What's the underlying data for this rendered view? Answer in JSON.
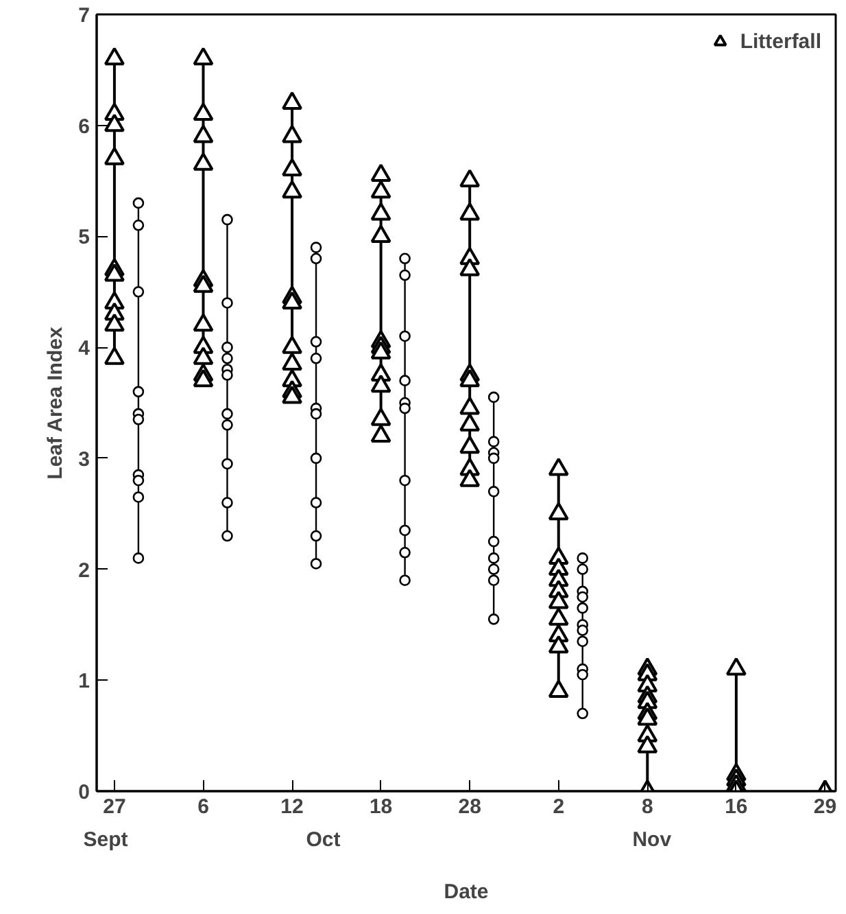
{
  "chart_data": {
    "type": "scatter",
    "xlabel": "Date",
    "ylabel": "Leaf Area Index",
    "categories": [
      "27",
      "6",
      "12",
      "18",
      "28",
      "2",
      "8",
      "16",
      "29"
    ],
    "ylim": [
      0,
      7
    ],
    "yticks": [
      0,
      1,
      2,
      3,
      4,
      5,
      6,
      7
    ],
    "grid": false,
    "legend": "top right",
    "annotations": [
      "Sept",
      "Oct",
      "Nov"
    ],
    "series": [
      {
        "name": "Litterfall",
        "color": "#000000",
        "marker": "triangle",
        "x": [
          "27",
          "27",
          "27",
          "27",
          "27",
          "27",
          "27",
          "27",
          "27",
          "27",
          "6",
          "6",
          "6",
          "6",
          "6",
          "6",
          "6",
          "6",
          "6",
          "6",
          "6",
          "12",
          "12",
          "12",
          "12",
          "12",
          "12",
          "12",
          "12",
          "12",
          "12",
          "12",
          "18",
          "18",
          "18",
          "18",
          "18",
          "18",
          "18",
          "18",
          "18",
          "18",
          "18",
          "28",
          "28",
          "28",
          "28",
          "28",
          "28",
          "28",
          "28",
          "28",
          "28",
          "28",
          "2",
          "2",
          "2",
          "2",
          "2",
          "2",
          "2",
          "2",
          "2",
          "2",
          "2",
          "8",
          "8",
          "8",
          "8",
          "8",
          "8",
          "8",
          "8",
          "8",
          "8",
          "16",
          "16",
          "16",
          "16",
          "16",
          "29"
        ],
        "values": [
          6.6,
          6.1,
          6.0,
          5.7,
          4.7,
          4.65,
          4.4,
          4.3,
          4.2,
          3.9,
          6.6,
          6.1,
          5.9,
          5.65,
          4.6,
          4.55,
          4.2,
          4.0,
          3.9,
          3.75,
          3.7,
          6.2,
          5.9,
          5.6,
          5.4,
          4.45,
          4.4,
          4.0,
          3.85,
          3.7,
          3.6,
          3.55,
          5.55,
          5.4,
          5.2,
          5.0,
          4.05,
          4.0,
          3.95,
          3.75,
          3.65,
          3.35,
          3.2,
          5.5,
          5.2,
          4.8,
          4.7,
          3.75,
          3.7,
          3.45,
          3.3,
          3.1,
          2.9,
          2.8,
          2.9,
          2.5,
          2.1,
          2.0,
          1.9,
          1.8,
          1.7,
          1.55,
          1.4,
          1.3,
          0.9,
          1.1,
          1.05,
          0.95,
          0.85,
          0.8,
          0.7,
          0.65,
          0.5,
          0.4,
          0.0,
          1.1,
          0.15,
          0.1,
          0.05,
          0.0,
          0.0
        ],
        "errors": [
          [
            3.9,
            6.6
          ],
          null,
          null,
          null,
          null,
          null,
          null,
          null,
          null,
          null,
          [
            3.7,
            6.6
          ],
          null,
          null,
          null,
          null,
          null,
          null,
          null,
          null,
          null,
          null,
          [
            3.55,
            6.2
          ],
          null,
          null,
          null,
          null,
          null,
          null,
          null,
          null,
          null,
          null,
          [
            3.2,
            5.55
          ],
          null,
          null,
          null,
          null,
          null,
          null,
          null,
          null,
          null,
          null,
          [
            2.8,
            5.5
          ],
          null,
          null,
          null,
          null,
          null,
          null,
          null,
          null,
          null,
          null,
          [
            0.9,
            2.9
          ],
          null,
          null,
          null,
          null,
          null,
          null,
          null,
          null,
          null,
          null,
          [
            0.0,
            1.1
          ],
          null,
          null,
          null,
          null,
          null,
          null,
          null,
          null,
          null,
          [
            0.0,
            1.1
          ],
          null,
          null,
          null,
          null,
          null
        ]
      },
      {
        "color": "#000000",
        "marker": "circle",
        "x": [
          "27",
          "27",
          "27",
          "27",
          "27",
          "27",
          "27",
          "27",
          "27",
          "27",
          "6",
          "6",
          "6",
          "6",
          "6",
          "6",
          "6",
          "6",
          "6",
          "6",
          "6",
          "12",
          "12",
          "12",
          "12",
          "12",
          "12",
          "12",
          "12",
          "12",
          "12",
          "18",
          "18",
          "18",
          "18",
          "18",
          "18",
          "18",
          "18",
          "18",
          "18",
          "28",
          "28",
          "28",
          "28",
          "28",
          "28",
          "28",
          "28",
          "28",
          "28",
          "2",
          "2",
          "2",
          "2",
          "2",
          "2",
          "2",
          "2",
          "2",
          "2",
          "2"
        ],
        "values": [
          5.3,
          5.1,
          4.5,
          3.6,
          3.4,
          3.35,
          2.85,
          2.8,
          2.65,
          2.1,
          5.15,
          4.4,
          4.0,
          3.9,
          3.8,
          3.75,
          3.4,
          3.3,
          2.95,
          2.6,
          2.3,
          4.9,
          4.8,
          4.05,
          3.9,
          3.45,
          3.4,
          3.0,
          2.6,
          2.3,
          2.05,
          4.8,
          4.65,
          4.1,
          3.7,
          3.5,
          3.45,
          2.8,
          2.35,
          2.15,
          1.9,
          3.55,
          3.15,
          3.05,
          3.0,
          2.7,
          2.25,
          2.1,
          2.0,
          1.9,
          1.55,
          2.1,
          2.0,
          1.8,
          1.75,
          1.65,
          1.5,
          1.45,
          1.35,
          1.1,
          1.05,
          0.7
        ],
        "errors": [
          [
            2.1,
            5.3
          ],
          null,
          null,
          null,
          null,
          null,
          null,
          null,
          null,
          null,
          [
            2.3,
            5.15
          ],
          null,
          null,
          null,
          null,
          null,
          null,
          null,
          null,
          null,
          null,
          [
            2.05,
            4.9
          ],
          null,
          null,
          null,
          null,
          null,
          null,
          null,
          null,
          null,
          [
            1.9,
            4.8
          ],
          null,
          null,
          null,
          null,
          null,
          null,
          null,
          null,
          null,
          [
            1.55,
            3.55
          ],
          null,
          null,
          null,
          null,
          null,
          null,
          null,
          null,
          null,
          [
            0.7,
            2.1
          ],
          null,
          null,
          null,
          null,
          null,
          null,
          null,
          null,
          null,
          null
        ]
      }
    ]
  }
}
